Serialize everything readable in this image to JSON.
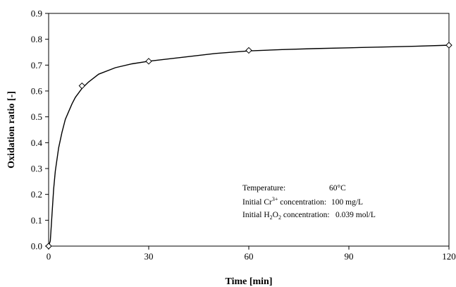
{
  "chart_data": {
    "type": "scatter",
    "title": "",
    "xlabel": "Time [min]",
    "ylabel": "Oxidation ratio [-]",
    "xlim": [
      0,
      120
    ],
    "ylim": [
      0,
      0.9
    ],
    "x_ticks": [
      0,
      30,
      60,
      90,
      120
    ],
    "x_tick_labels": [
      "0",
      "30",
      "60",
      "90",
      "120"
    ],
    "y_ticks": [
      0,
      0.1,
      0.2,
      0.3,
      0.4,
      0.5,
      0.6,
      0.7,
      0.8,
      0.9
    ],
    "y_tick_labels": [
      "0.0",
      "0.1",
      "0.2",
      "0.3",
      "0.4",
      "0.5",
      "0.6",
      "0.7",
      "0.8",
      "0.9"
    ],
    "grid": false,
    "legend": "none",
    "series": [
      {
        "marker": "diamond-open",
        "x": [
          0,
          10,
          30,
          60,
          120
        ],
        "y": [
          0.0,
          0.62,
          0.715,
          0.757,
          0.777
        ]
      }
    ],
    "fit_curve": {
      "x": [
        0,
        0.5,
        1,
        1.5,
        2,
        3,
        4,
        5,
        6,
        7,
        8,
        10,
        12,
        15,
        20,
        25,
        30,
        40,
        50,
        60,
        70,
        80,
        90,
        100,
        110,
        120
      ],
      "y": [
        0.0,
        0.02,
        0.12,
        0.22,
        0.29,
        0.38,
        0.44,
        0.49,
        0.52,
        0.55,
        0.575,
        0.61,
        0.635,
        0.665,
        0.69,
        0.705,
        0.715,
        0.73,
        0.745,
        0.755,
        0.76,
        0.764,
        0.767,
        0.77,
        0.773,
        0.777
      ]
    },
    "annotations": {
      "temp_label": "Temperature:",
      "temp_value": "60°C",
      "cr_label_pre": "Initial Cr",
      "cr_label_sup": "3+",
      "cr_label_post": " concentration:",
      "cr_value": "100 mg/L",
      "h2o2_label_pre": "Initial H",
      "h2o2_label_sub1": "2",
      "h2o2_label_mid": "O",
      "h2o2_label_sub2": "2",
      "h2o2_label_post": " concentration:",
      "h2o2_value": "0.039 mol/L"
    }
  }
}
